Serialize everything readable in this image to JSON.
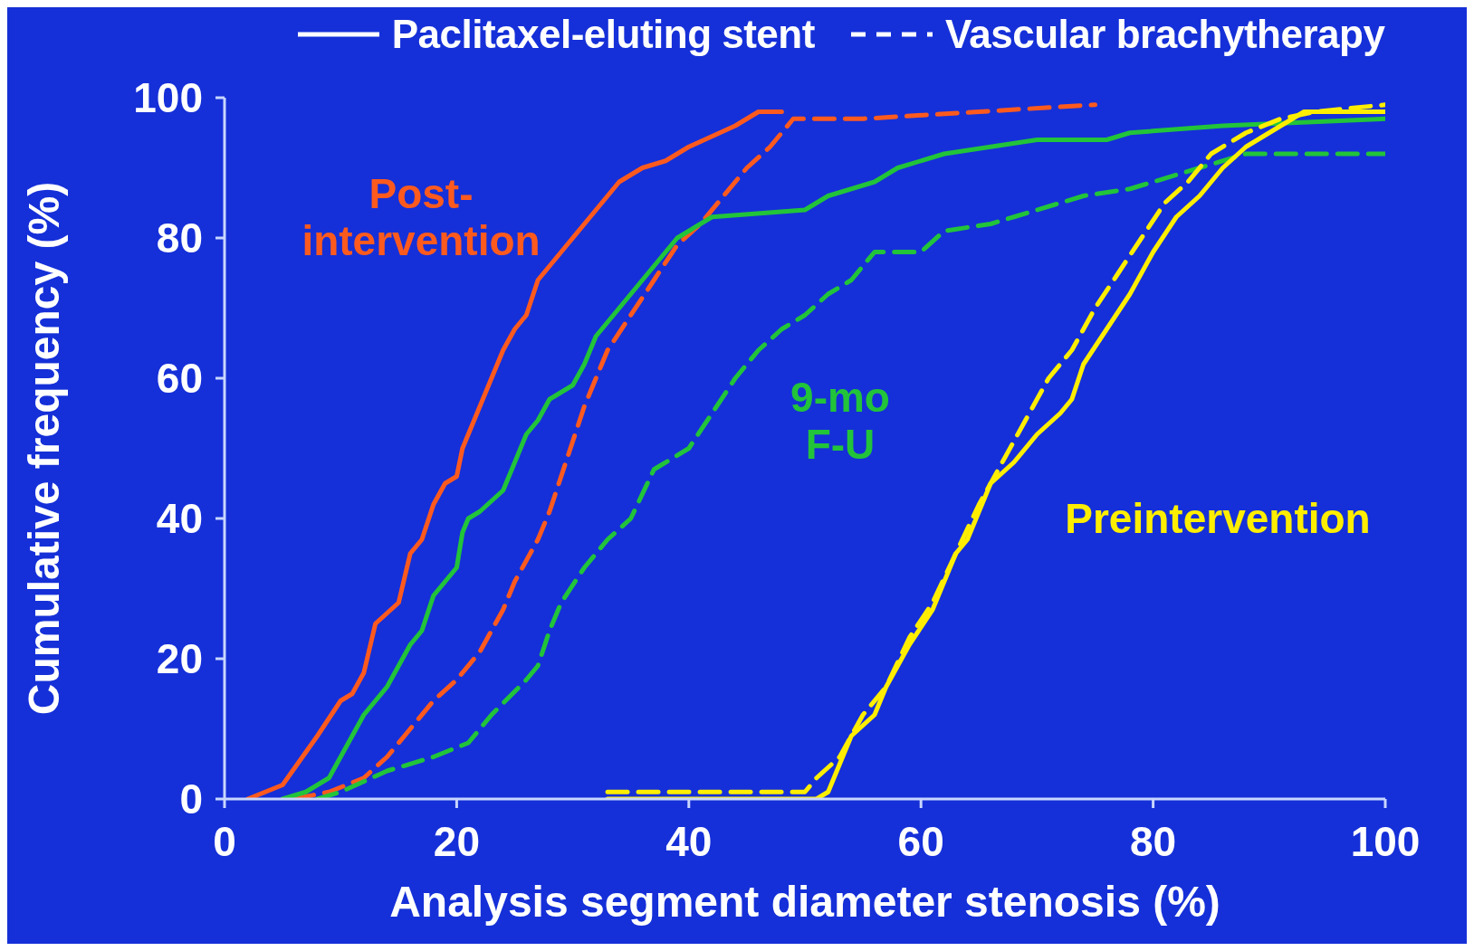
{
  "chart_data": {
    "type": "line",
    "xlabel": "Analysis segment diameter stenosis (%)",
    "ylabel": "Cumulative frequency (%)",
    "xlim": [
      0,
      100
    ],
    "xticks": [
      0,
      20,
      40,
      60,
      80,
      100
    ],
    "ylim": [
      0,
      100
    ],
    "yticks": [
      0,
      20,
      40,
      60,
      80,
      100
    ],
    "grid": false,
    "legend": "top",
    "marker": "none",
    "annotations": [
      "Post-\nintervention",
      "9-mo\nF-U",
      "Preintervention"
    ],
    "series": [
      {
        "name": "Paclitaxel-eluting stent",
        "color": "#ff5a1e",
        "line_style": "solid",
        "x": [
          2,
          5,
          8,
          10,
          11,
          12,
          13,
          15,
          16,
          17,
          18,
          19,
          20,
          20.5,
          22,
          24,
          25,
          26,
          27,
          29,
          31,
          33,
          34,
          36,
          38,
          40,
          44,
          46,
          48
        ],
        "values": [
          0,
          2,
          9,
          14,
          15,
          18,
          25,
          28,
          35,
          37,
          42,
          45,
          46,
          50,
          56,
          64,
          67,
          69,
          74,
          78,
          82,
          86,
          88,
          90,
          91,
          93,
          96,
          98,
          98
        ]
      },
      {
        "name": "Vascular brachytherapy",
        "color": "#ff5a1e",
        "line_style": "dashed",
        "x": [
          6,
          9,
          12,
          14,
          16,
          18,
          20,
          22,
          24,
          25,
          27,
          28,
          29,
          30,
          31,
          32,
          33,
          35,
          37,
          39,
          41,
          43,
          45,
          47,
          49,
          55,
          65,
          75
        ],
        "values": [
          0,
          1,
          3,
          6,
          10,
          14,
          17,
          21,
          27,
          31,
          37,
          41,
          46,
          51,
          56,
          60,
          64,
          69,
          74,
          79,
          82,
          86,
          90,
          93,
          97,
          97,
          98,
          99
        ]
      },
      {
        "color": "#22c43a",
        "line_style": "solid",
        "x": [
          5,
          7,
          9,
          10,
          11,
          12,
          14,
          16,
          17,
          18,
          19,
          20,
          20.5,
          21,
          22,
          24,
          25,
          26,
          27,
          28,
          30,
          31,
          32,
          34,
          36,
          38,
          39,
          40,
          42,
          50,
          52,
          56,
          58,
          62,
          66,
          70,
          76,
          78,
          86,
          100
        ],
        "values": [
          0,
          1,
          3,
          6,
          9,
          12,
          16,
          22,
          24,
          29,
          31,
          33,
          38,
          40,
          41,
          44,
          48,
          52,
          54,
          57,
          59,
          62,
          66,
          70,
          74,
          78,
          80,
          81,
          83,
          84,
          86,
          88,
          90,
          92,
          93,
          94,
          94,
          95,
          96,
          97
        ]
      },
      {
        "color": "#22c43a",
        "line_style": "dashed",
        "x": [
          8,
          10,
          14,
          18,
          21,
          23,
          26,
          27,
          28,
          29,
          31,
          33,
          35,
          37,
          40,
          42,
          44,
          46,
          48,
          50,
          52,
          54,
          56,
          60,
          62,
          66,
          68,
          72,
          74,
          78,
          82,
          84,
          88,
          100
        ],
        "values": [
          0,
          1,
          4,
          6,
          8,
          12,
          17,
          19,
          24,
          28,
          33,
          37,
          40,
          47,
          50,
          55,
          60,
          64,
          67,
          69,
          72,
          74,
          78,
          78,
          81,
          82,
          83,
          85,
          86,
          87,
          89,
          90,
          92,
          92
        ]
      },
      {
        "color": "#ffee00",
        "line_style": "solid",
        "x": [
          33,
          45,
          51,
          52,
          53,
          54,
          56,
          57,
          59,
          61,
          62,
          63,
          64,
          65,
          66,
          68,
          70,
          72,
          73,
          74,
          76,
          78,
          80,
          82,
          84,
          86,
          88,
          91,
          93,
          100
        ],
        "values": [
          0,
          0,
          0,
          1,
          5,
          9,
          12,
          16,
          22,
          27,
          31,
          35,
          37,
          41,
          45,
          48,
          52,
          55,
          57,
          62,
          67,
          72,
          78,
          83,
          86,
          90,
          93,
          96,
          98,
          98
        ]
      },
      {
        "color": "#ffee00",
        "line_style": "dashed",
        "x": [
          33,
          45,
          50,
          51,
          53,
          55,
          57,
          59,
          61,
          63,
          65,
          67,
          69,
          71,
          73,
          75,
          77,
          79,
          81,
          83,
          85,
          88,
          91,
          94,
          100
        ],
        "values": [
          1,
          1,
          1,
          3,
          6,
          12,
          16,
          23,
          28,
          35,
          42,
          48,
          54,
          60,
          64,
          70,
          75,
          80,
          85,
          88,
          92,
          95,
          97,
          98,
          99
        ]
      }
    ]
  }
}
